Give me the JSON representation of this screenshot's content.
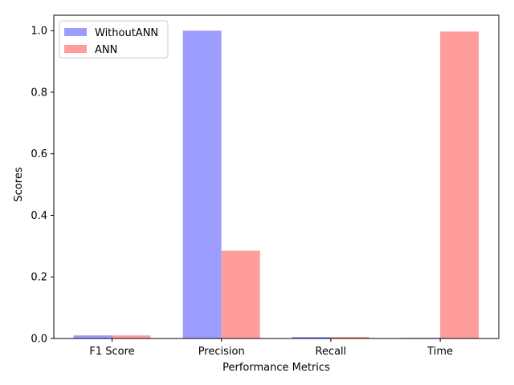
{
  "chart_data": {
    "type": "bar",
    "title": "",
    "xlabel": "Performance Metrics",
    "ylabel": "Scores",
    "categories": [
      "F1 Score",
      "Precision",
      "Recall",
      "Time"
    ],
    "series": [
      {
        "name": "WithoutANN",
        "color": "#9d9dff",
        "values": [
          0.01,
          1.0,
          0.005,
          0.002
        ]
      },
      {
        "name": "ANN",
        "color": "#ff9d9d",
        "values": [
          0.01,
          0.285,
          0.005,
          0.997
        ]
      }
    ],
    "ylim": [
      0,
      1.05
    ],
    "yticks": [
      0.0,
      0.2,
      0.4,
      0.6,
      0.8,
      1.0
    ],
    "ytick_labels": [
      "0.0",
      "0.2",
      "0.4",
      "0.6",
      "0.8",
      "1.0"
    ],
    "grid": false,
    "legend_position": "top-left"
  }
}
